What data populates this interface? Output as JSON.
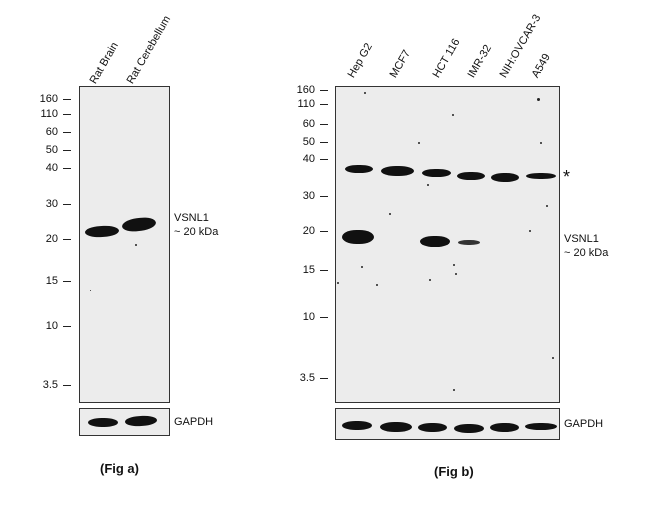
{
  "fig_a": {
    "lanes": [
      "Rat Brain",
      "Rat Cerebellum"
    ],
    "markers": [
      "160",
      "110",
      "60",
      "50",
      "40",
      "30",
      "20",
      "15",
      "10",
      "3.5"
    ],
    "target_label": "VSNL1",
    "target_size": "~ 20 kDa",
    "loading_label": "GAPDH",
    "caption": "(Fig a)"
  },
  "fig_b": {
    "lanes": [
      "Hep G2",
      "MCF7",
      "HCT 116",
      "IMR-32",
      "NIH:OVCAR-3",
      "A549"
    ],
    "markers": [
      "160",
      "110",
      "60",
      "50",
      "40",
      "30",
      "20",
      "15",
      "10",
      "3.5"
    ],
    "asterisk": "*",
    "target_label": "VSNL1",
    "target_size": "~ 20 kDa",
    "loading_label": "GAPDH",
    "caption": "(Fig b)"
  }
}
